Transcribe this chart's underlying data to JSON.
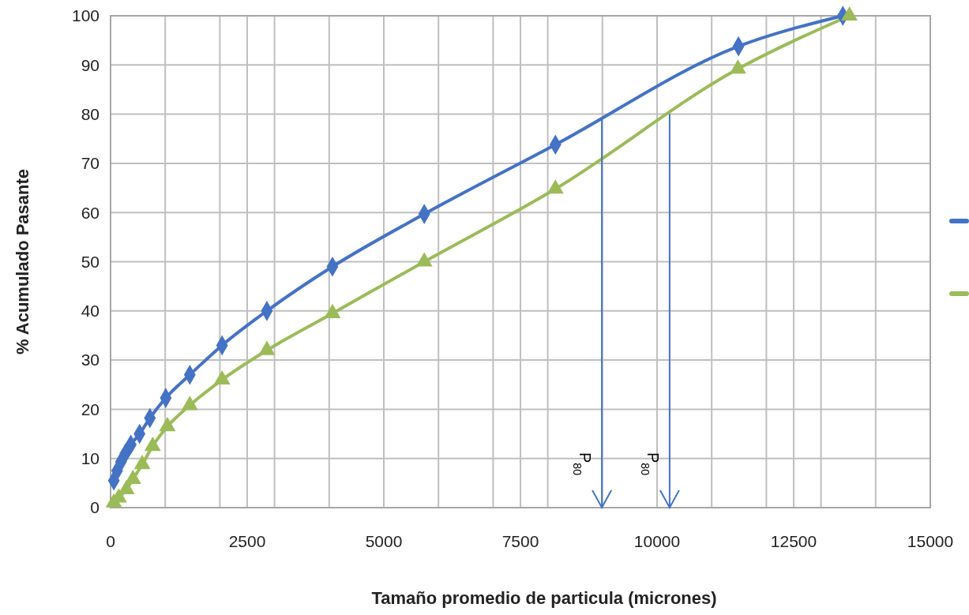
{
  "chart_data": {
    "type": "line",
    "xlabel": "Tamaño promedio de particula (micrones)",
    "ylabel": "% Acumulado Pasante",
    "xlim": [
      0,
      15000
    ],
    "ylim": [
      0,
      100
    ],
    "xticks": [
      0,
      {
        "value": 1000,
        "label": null
      },
      {
        "value": 2000,
        "label": null
      },
      2500,
      {
        "value": 3000,
        "label": null
      },
      {
        "value": 4000,
        "label": null
      },
      5000,
      {
        "value": 6000,
        "label": null
      },
      {
        "value": 7000,
        "label": null
      },
      7500,
      {
        "value": 8000,
        "label": null
      },
      {
        "value": 9000,
        "label": null
      },
      10000,
      {
        "value": 11000,
        "label": null
      },
      {
        "value": 12000,
        "label": null
      },
      12500,
      {
        "value": 13000,
        "label": null
      },
      {
        "value": 14000,
        "label": null
      },
      15000
    ],
    "yticks": [
      0,
      10,
      20,
      30,
      40,
      50,
      60,
      70,
      80,
      90,
      100
    ],
    "grid": true,
    "line_style": "solid",
    "series": [
      {
        "color": "#4472c4",
        "marker": "diamond",
        "x": [
          60,
          120,
          190,
          270,
          370,
          530,
          720,
          1010,
          1450,
          2040,
          2860,
          4060,
          5740,
          8140,
          11490,
          13400
        ],
        "values": [
          5.5,
          7.5,
          9.3,
          11,
          12.8,
          15,
          18.2,
          22.3,
          27,
          33,
          40,
          49,
          59.7,
          73.8,
          93.8,
          100
        ]
      },
      {
        "color": "#9bbb59",
        "marker": "triangle",
        "x": [
          60,
          150,
          290,
          410,
          580,
          770,
          1040,
          1450,
          2040,
          2860,
          4060,
          5740,
          8140,
          11480,
          13520
        ],
        "values": [
          1,
          2,
          3.7,
          5.8,
          8.8,
          12.5,
          16.5,
          20.8,
          26,
          32,
          39.5,
          50,
          64.8,
          89.2,
          100
        ]
      }
    ],
    "ref_lines": [
      {
        "axis": "x",
        "value": 8990,
        "label": "P$_{80}$",
        "color": "#4472c4"
      },
      {
        "axis": "x",
        "value": 10230,
        "label": "P$_{80}$",
        "color": "#4472c4"
      }
    ]
  }
}
